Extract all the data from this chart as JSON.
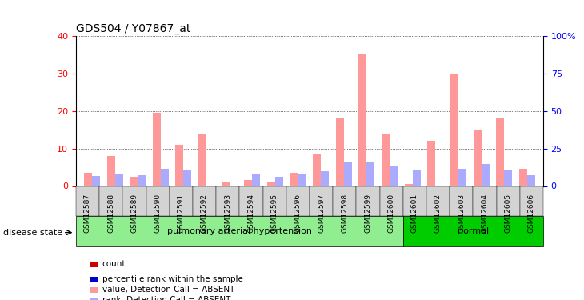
{
  "title": "GDS504 / Y07867_at",
  "samples": [
    "GSM12587",
    "GSM12588",
    "GSM12589",
    "GSM12590",
    "GSM12591",
    "GSM12592",
    "GSM12593",
    "GSM12594",
    "GSM12595",
    "GSM12596",
    "GSM12597",
    "GSM12598",
    "GSM12599",
    "GSM12600",
    "GSM12601",
    "GSM12602",
    "GSM12603",
    "GSM12604",
    "GSM12605",
    "GSM12606"
  ],
  "count_values": [
    3.5,
    8.0,
    2.5,
    19.5,
    11.0,
    14.0,
    1.0,
    1.5,
    1.0,
    3.5,
    8.5,
    18.0,
    35.0,
    14.0,
    0.5,
    12.0,
    30.0,
    15.0,
    18.0,
    4.5
  ],
  "rank_values": [
    6.5,
    8.0,
    7.0,
    11.5,
    11.0,
    0.0,
    0.0,
    7.5,
    6.0,
    8.0,
    10.0,
    16.0,
    16.0,
    13.0,
    10.5,
    0.0,
    11.5,
    14.5,
    11.0,
    7.0
  ],
  "count_absent": [
    true,
    true,
    true,
    true,
    true,
    true,
    true,
    true,
    true,
    true,
    true,
    true,
    true,
    true,
    true,
    true,
    true,
    true,
    true,
    true
  ],
  "rank_absent": [
    true,
    true,
    true,
    true,
    true,
    false,
    false,
    true,
    true,
    true,
    true,
    true,
    true,
    true,
    true,
    false,
    true,
    true,
    true,
    true
  ],
  "disease_groups": [
    {
      "label": "pulmonary arterial hypertension",
      "start": 0,
      "end": 13,
      "color": "#90EE90"
    },
    {
      "label": "normal",
      "start": 14,
      "end": 19,
      "color": "#00CC00"
    }
  ],
  "ylim_left": [
    0,
    40
  ],
  "ylim_right": [
    0,
    100
  ],
  "yticks_left": [
    0,
    10,
    20,
    30,
    40
  ],
  "yticks_right": [
    0,
    25,
    50,
    75,
    100
  ],
  "ytick_labels_right": [
    "0",
    "25",
    "50",
    "75",
    "100%"
  ],
  "color_count": "#ff9999",
  "color_rank": "#aaaaff",
  "color_count_present": "#cc0000",
  "color_rank_present": "#0000cc",
  "bar_width": 0.35,
  "background_plot": "#ffffff",
  "grid_color": "#000000",
  "xlabel_color": "#000000",
  "disease_state_label": "disease state",
  "legend_items": [
    {
      "color": "#cc0000",
      "marker": "s",
      "label": "count"
    },
    {
      "color": "#0000cc",
      "marker": "s",
      "label": "percentile rank within the sample"
    },
    {
      "color": "#ff9999",
      "marker": "s",
      "label": "value, Detection Call = ABSENT"
    },
    {
      "color": "#aaaaff",
      "marker": "s",
      "label": "rank, Detection Call = ABSENT"
    }
  ]
}
